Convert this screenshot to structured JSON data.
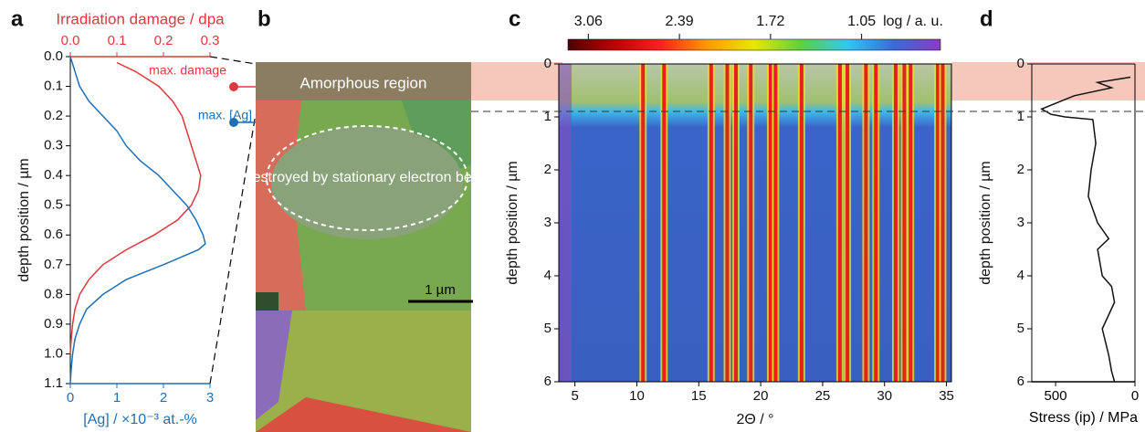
{
  "chart_data": [
    {
      "type": "line",
      "label": "a",
      "ylabel": "depth position / µm",
      "ylim": [
        0,
        1.1
      ],
      "y_inverted": true,
      "yticks": [
        {
          "value": 0,
          "label": "0.0"
        },
        0.1,
        0.2,
        0.3,
        0.4,
        0.5,
        0.6,
        0.7,
        0.8,
        0.9,
        {
          "value": 1,
          "label": "1.0"
        },
        1.1
      ],
      "xlabel": "[Ag] / ×10⁻³ at.-%",
      "xlim": [
        0,
        3
      ],
      "xticks": [
        0,
        1,
        2,
        3
      ],
      "x2label": "Irradiation damage / dpa",
      "x2lim": [
        0,
        0.3
      ],
      "x2ticks": [
        {
          "value": 0,
          "label": "0.0"
        },
        0.1,
        0.2,
        0.3
      ],
      "series": [
        {
          "name": "max. damage",
          "color": "#e0383e",
          "axis": "x2",
          "x": [
            0.1,
            0.14,
            0.19,
            0.22,
            0.24,
            0.25,
            0.26,
            0.27,
            0.28,
            0.275,
            0.26,
            0.23,
            0.18,
            0.12,
            0.07,
            0.04,
            0.02,
            0.01,
            0.005,
            0.002,
            0
          ],
          "y": [
            0.02,
            0.05,
            0.1,
            0.15,
            0.2,
            0.25,
            0.3,
            0.35,
            0.4,
            0.45,
            0.5,
            0.55,
            0.6,
            0.65,
            0.7,
            0.75,
            0.8,
            0.85,
            0.9,
            0.95,
            1.0
          ]
        },
        {
          "name": "max. [Ag]",
          "color": "#1f6fb5",
          "axis": "x",
          "x": [
            0,
            0.1,
            0.2,
            0.4,
            0.7,
            1.0,
            1.2,
            1.5,
            1.9,
            2.2,
            2.5,
            2.7,
            2.85,
            2.9,
            2.75,
            2.0,
            1.2,
            0.7,
            0.35,
            0.2,
            0.1,
            0.05,
            0.02,
            0
          ],
          "y": [
            0,
            0.05,
            0.1,
            0.15,
            0.2,
            0.25,
            0.3,
            0.35,
            0.4,
            0.45,
            0.5,
            0.55,
            0.6,
            0.63,
            0.65,
            0.7,
            0.75,
            0.8,
            0.85,
            0.9,
            0.95,
            1.0,
            1.05,
            1.1
          ]
        }
      ]
    },
    {
      "type": "heatmap",
      "label": "c",
      "ylabel": "depth position / µm",
      "ylim": [
        0,
        6
      ],
      "y_inverted": true,
      "yticks": [
        0,
        1,
        2,
        3,
        4,
        5,
        6
      ],
      "xlabel": "2Θ / °",
      "xlim": [
        3.7,
        35.4
      ],
      "xticks": [
        5,
        10,
        15,
        20,
        25,
        30,
        35
      ],
      "peaks": [
        10.5,
        12.2,
        16.0,
        17.3,
        18.0,
        19.2,
        20.8,
        21.2,
        23.3,
        26.4,
        27.0,
        28.5,
        29.3,
        30.9,
        31.6,
        32.1,
        34.3,
        34.7
      ],
      "colorbar": {
        "label": "log / a. u.",
        "lim": [
          3.21,
          0.47
        ],
        "ticks": [
          3.06,
          2.39,
          1.72,
          1.05
        ],
        "colors": [
          "#4a0000",
          "#c00000",
          "#ff2020",
          "#ff9a00",
          "#e8e800",
          "#5fd040",
          "#30c8f0",
          "#3a6ad8",
          "#8a3cc0"
        ]
      }
    },
    {
      "type": "line",
      "label": "d",
      "ylabel": "depth position / µm",
      "ylim": [
        0,
        6
      ],
      "y_inverted": true,
      "yticks": [
        0,
        1,
        2,
        3,
        4,
        5,
        6
      ],
      "xlabel": "Stress (ip) / MPa",
      "xlim": [
        650,
        0
      ],
      "xticks": [
        500,
        0
      ],
      "series": [
        {
          "color": "#111111",
          "axis": "x",
          "x": [
            29,
            235,
            147,
            382,
            588,
            529,
            441,
            265,
            247,
            276,
            294,
            235,
            165,
            235,
            206,
            147,
            129,
            206,
            165,
            147,
            129
          ],
          "y": [
            0.25,
            0.35,
            0.45,
            0.6,
            0.85,
            0.95,
            1.0,
            1.05,
            1.5,
            2.0,
            2.5,
            3.0,
            3.3,
            3.5,
            4.0,
            4.2,
            4.5,
            5.0,
            5.5,
            5.8,
            6.0
          ]
        }
      ]
    }
  ],
  "micrograph": {
    "label": "b",
    "region": "Amorphous region",
    "destroyed": "Destroyed by stationary electron beam",
    "scale_bar": "1 µm"
  }
}
